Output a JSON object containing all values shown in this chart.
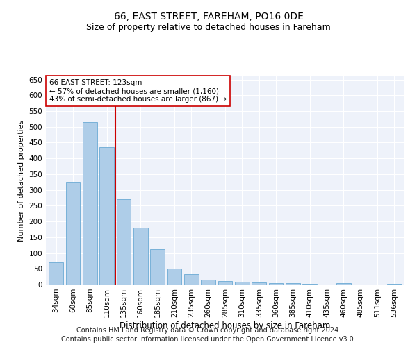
{
  "title": "66, EAST STREET, FAREHAM, PO16 0DE",
  "subtitle": "Size of property relative to detached houses in Fareham",
  "xlabel": "Distribution of detached houses by size in Fareham",
  "ylabel": "Number of detached properties",
  "categories": [
    "34sqm",
    "60sqm",
    "85sqm",
    "110sqm",
    "135sqm",
    "160sqm",
    "185sqm",
    "210sqm",
    "235sqm",
    "260sqm",
    "285sqm",
    "310sqm",
    "335sqm",
    "360sqm",
    "385sqm",
    "410sqm",
    "435sqm",
    "460sqm",
    "485sqm",
    "511sqm",
    "536sqm"
  ],
  "values": [
    70,
    325,
    515,
    435,
    270,
    180,
    112,
    50,
    33,
    16,
    12,
    8,
    6,
    4,
    4,
    2,
    0,
    5,
    0,
    0,
    3
  ],
  "bar_color": "#aecde8",
  "bar_edge_color": "#6aaad4",
  "vline_x": 3.5,
  "vline_color": "#cc0000",
  "annotation_text": "66 EAST STREET: 123sqm\n← 57% of detached houses are smaller (1,160)\n43% of semi-detached houses are larger (867) →",
  "annotation_box_color": "#ffffff",
  "annotation_box_edge": "#cc0000",
  "ylim": [
    0,
    660
  ],
  "yticks": [
    0,
    50,
    100,
    150,
    200,
    250,
    300,
    350,
    400,
    450,
    500,
    550,
    600,
    650
  ],
  "footer1": "Contains HM Land Registry data © Crown copyright and database right 2024.",
  "footer2": "Contains public sector information licensed under the Open Government Licence v3.0.",
  "plot_bg_color": "#eef2fa",
  "title_fontsize": 10,
  "subtitle_fontsize": 9,
  "xlabel_fontsize": 8.5,
  "ylabel_fontsize": 8,
  "tick_fontsize": 7.5,
  "annotation_fontsize": 7.5,
  "footer_fontsize": 7
}
